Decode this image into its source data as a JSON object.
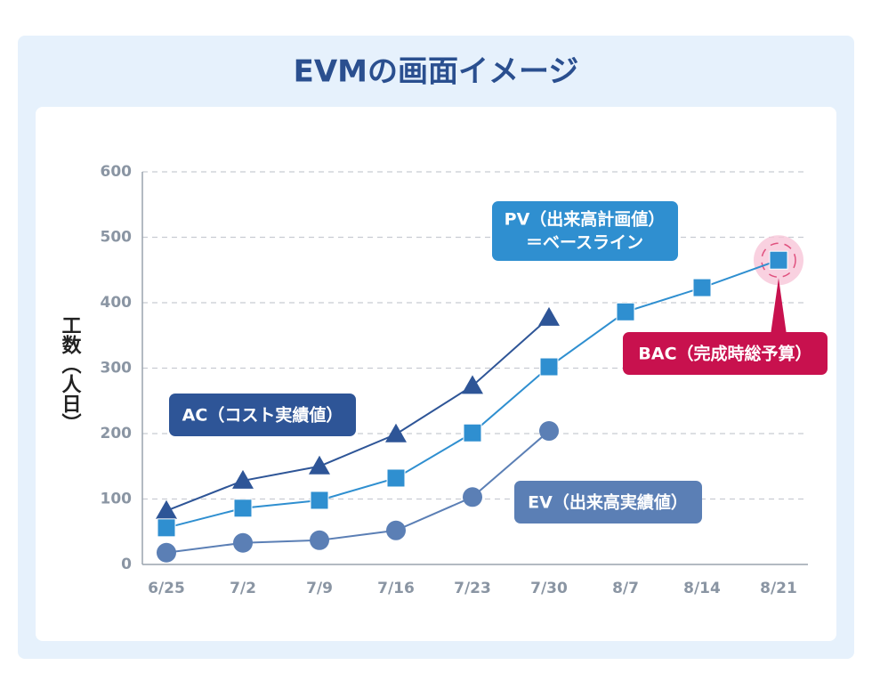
{
  "chart_data": {
    "type": "line",
    "title": "EVMの画面イメージ",
    "y_label": "工数（人日）",
    "categories": [
      "6/25",
      "7/2",
      "7/9",
      "7/16",
      "7/23",
      "7/30",
      "8/7",
      "8/14",
      "8/21"
    ],
    "ylim": [
      0,
      600
    ],
    "yticks": [
      0,
      100,
      200,
      300,
      400,
      500,
      600
    ],
    "grid": true,
    "series": [
      {
        "name": "AC（コスト実績値）",
        "color": "#2e5597",
        "marker": "triangle",
        "values": [
          82,
          128,
          150,
          199,
          273,
          377,
          null,
          null,
          null
        ]
      },
      {
        "name": "PV（出来高計画値）",
        "note": "＝ベースライン",
        "color": "#2f8fd0",
        "marker": "square",
        "values": [
          56,
          86,
          98,
          132,
          201,
          302,
          386,
          423,
          465
        ]
      },
      {
        "name": "EV（出来高実績値）",
        "color": "#5b7fb5",
        "marker": "circle",
        "values": [
          18,
          33,
          37,
          52,
          103,
          204,
          null,
          null,
          null
        ]
      }
    ],
    "annotations": [
      {
        "text": "BAC（完成時総予算）",
        "color": "#c8114e"
      }
    ]
  }
}
